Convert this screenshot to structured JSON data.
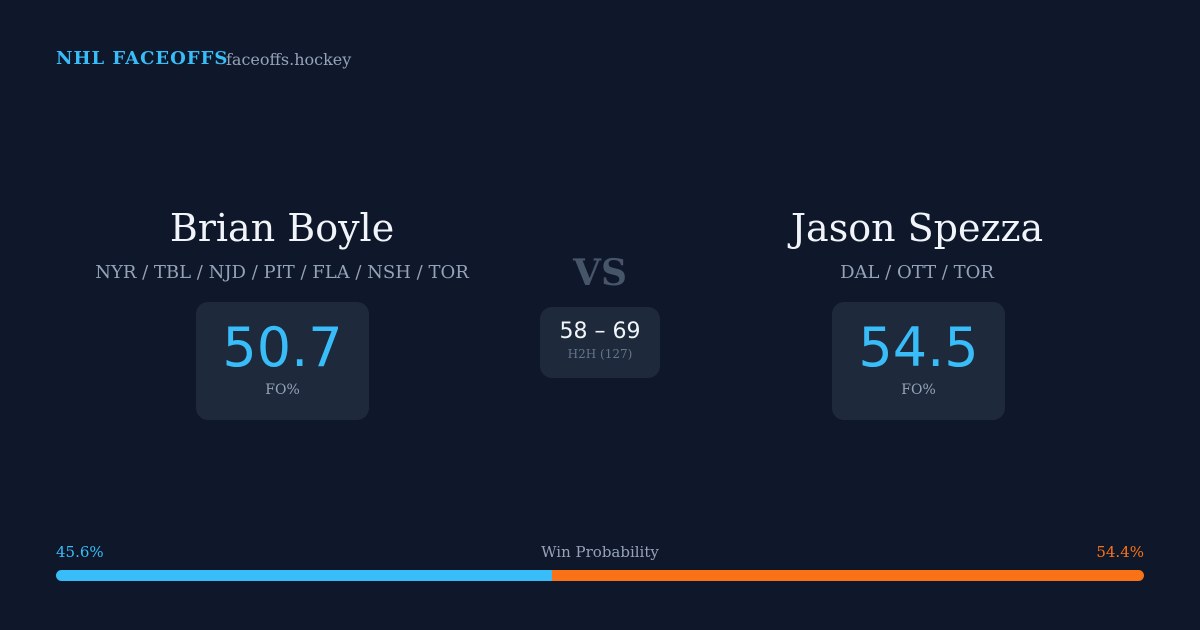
{
  "header": {
    "brand": "NHL FACEOFFS",
    "site": "faceoffs.hockey"
  },
  "players": [
    {
      "name": "Brian Boyle",
      "teams": "NYR / TBL / NJD / PIT / FLA / NSH / TOR",
      "fo_pct": 50.7,
      "fo_label": "FO%"
    },
    {
      "name": "Jason Spezza",
      "teams": "DAL / OTT / TOR",
      "fo_pct": 54.5,
      "fo_label": "FO%"
    }
  ],
  "versus": "VS",
  "h2h": {
    "score": "58 – 69",
    "label": "H2H (127)"
  },
  "win_probability": {
    "title": "Win Probability",
    "values": [
      45.6,
      54.4
    ],
    "value_labels": [
      "45.6%",
      "54.4%"
    ],
    "colors": [
      "#38bdf8",
      "#f97316"
    ]
  }
}
